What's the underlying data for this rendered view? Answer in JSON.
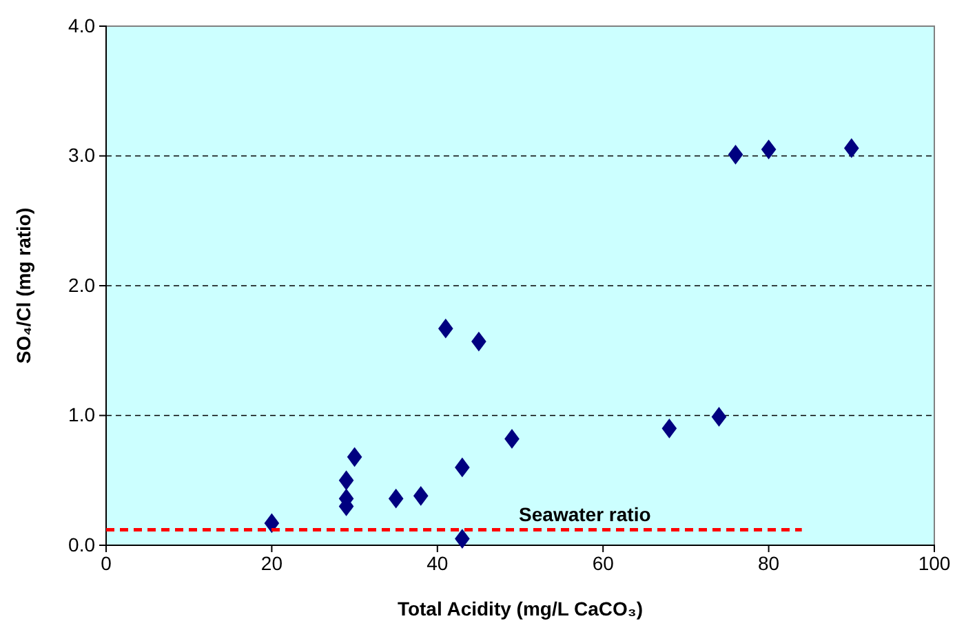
{
  "chart_data": {
    "type": "scatter",
    "xlabel": "Total Acidity (mg/L CaCO₃)",
    "ylabel": "SO₄/Cl (mg ratio)",
    "xlim": [
      0,
      100
    ],
    "xticks": [
      0,
      20,
      40,
      60,
      80,
      100
    ],
    "ylim": [
      0,
      4
    ],
    "yticks": [
      {
        "value": 0,
        "label": "0.0"
      },
      {
        "value": 1,
        "label": "1.0"
      },
      {
        "value": 2,
        "label": "2.0"
      },
      {
        "value": 3,
        "label": "3.0"
      },
      {
        "value": 4,
        "label": "4.0"
      }
    ],
    "grid": "y",
    "marker": "diamond",
    "series": [
      {
        "color": "#000080",
        "x": [
          20,
          29,
          29,
          29,
          30,
          35,
          38,
          41,
          43,
          43,
          45,
          49,
          68,
          74,
          76,
          80,
          90
        ],
        "values": [
          0.17,
          0.5,
          0.36,
          0.3,
          0.68,
          0.36,
          0.38,
          1.67,
          0.6,
          0.05,
          1.57,
          0.82,
          0.9,
          0.99,
          3.01,
          3.05,
          3.06
        ]
      },
      {
        "type": "line",
        "name": "Seawater ratio",
        "color": "#ff0000",
        "line_style": "dashed",
        "marker": "none",
        "x": [
          0,
          84
        ],
        "values": [
          0.12,
          0.12
        ]
      }
    ]
  }
}
